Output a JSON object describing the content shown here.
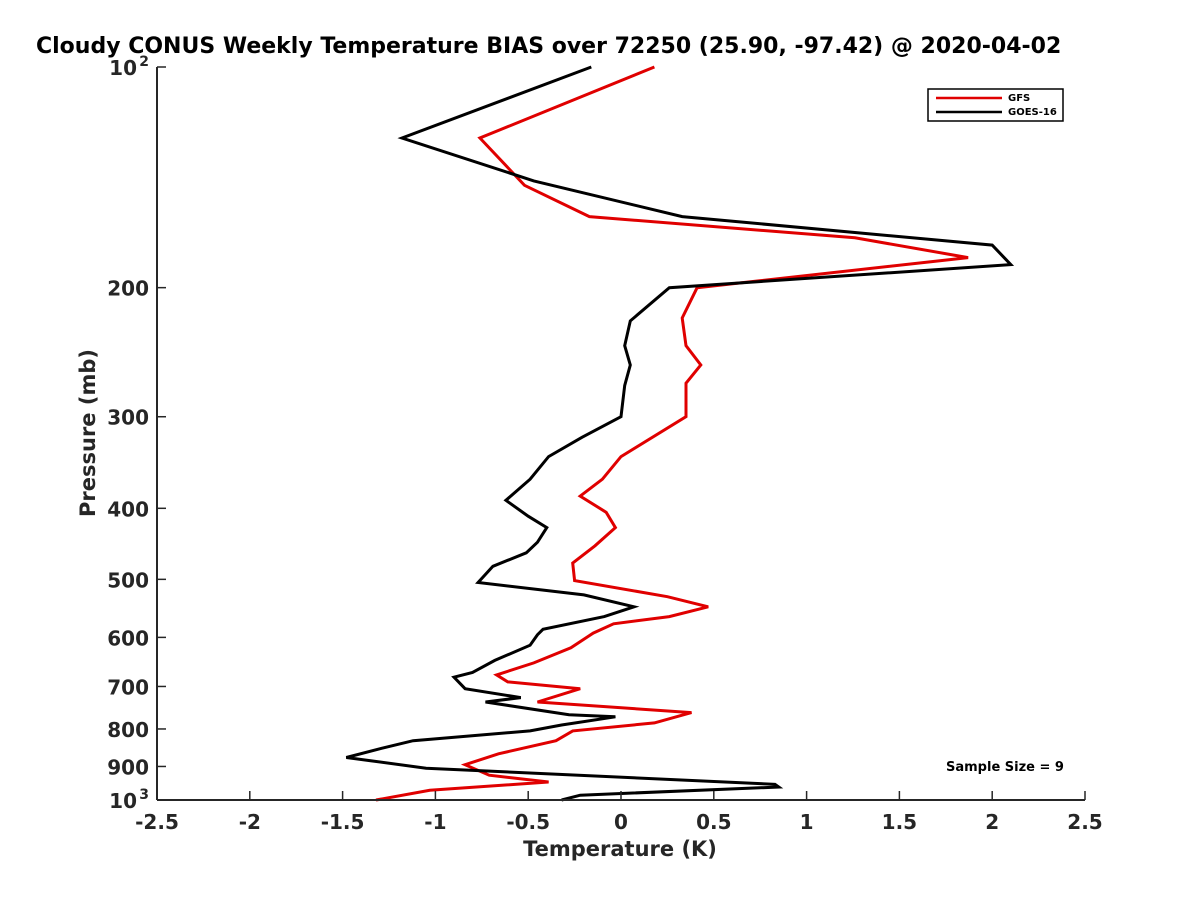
{
  "chart_data": {
    "type": "line",
    "title": "Cloudy CONUS Weekly Temperature BIAS over 72250 (25.90, -97.42) @ 2020-04-02",
    "xlabel": "Temperature (K)",
    "ylabel": "Pressure (mb)",
    "xlim": [
      -2.5,
      2.5
    ],
    "ylim": [
      100,
      1000
    ],
    "y_scale": "log",
    "y_reversed": true,
    "grid": false,
    "legend_position": "top-right",
    "annotation": "Sample Size = 9",
    "x_ticks": [
      {
        "value": -2.5,
        "label": "-2.5"
      },
      {
        "value": -2,
        "label": "-2"
      },
      {
        "value": -1.5,
        "label": "-1.5"
      },
      {
        "value": -1,
        "label": "-1"
      },
      {
        "value": -0.5,
        "label": "-0.5"
      },
      {
        "value": 0,
        "label": "0"
      },
      {
        "value": 0.5,
        "label": "0.5"
      },
      {
        "value": 1,
        "label": "1"
      },
      {
        "value": 1.5,
        "label": "1.5"
      },
      {
        "value": 2,
        "label": "2"
      },
      {
        "value": 2.5,
        "label": "2.5"
      }
    ],
    "y_ticks": [
      {
        "value": 100,
        "label": "10",
        "sup": "2"
      },
      {
        "value": 200,
        "label": "200"
      },
      {
        "value": 300,
        "label": "300"
      },
      {
        "value": 400,
        "label": "400"
      },
      {
        "value": 500,
        "label": "500"
      },
      {
        "value": 600,
        "label": "600"
      },
      {
        "value": 700,
        "label": "700"
      },
      {
        "value": 800,
        "label": "800"
      },
      {
        "value": 900,
        "label": "900"
      },
      {
        "value": 1000,
        "label": "10",
        "sup": "3"
      }
    ],
    "series": [
      {
        "name": "GFS",
        "color": "#e00000",
        "x": [
          0.18,
          -0.76,
          -0.52,
          -0.17,
          1.26,
          1.87,
          0.41,
          0.33,
          0.35,
          0.43,
          0.35,
          0.35,
          0.0,
          -0.1,
          -0.22,
          -0.08,
          -0.03,
          -0.14,
          -0.26,
          -0.25,
          0.25,
          0.47,
          0.26,
          -0.04,
          -0.15,
          -0.27,
          -0.47,
          -0.67,
          -0.61,
          -0.22,
          -0.45,
          0.38,
          0.18,
          -0.26,
          -0.35,
          -0.66,
          -0.84,
          -0.71,
          -0.39,
          -1.03,
          -1.32
        ],
        "y": [
          100,
          125,
          145,
          160,
          171,
          182,
          200,
          220,
          240,
          255,
          270,
          300,
          340,
          365,
          385,
          405,
          425,
          450,
          475,
          502,
          528,
          545,
          562,
          575,
          592,
          620,
          650,
          675,
          690,
          705,
          735,
          760,
          785,
          805,
          830,
          865,
          895,
          925,
          945,
          970,
          1000
        ]
      },
      {
        "name": "GOES-16",
        "color": "#000000",
        "x": [
          -0.16,
          -1.18,
          -0.47,
          0.33,
          2.0,
          2.1,
          0.26,
          0.05,
          0.02,
          0.05,
          0.02,
          0.0,
          -0.21,
          -0.39,
          -0.49,
          -0.62,
          -0.5,
          -0.4,
          -0.45,
          -0.51,
          -0.69,
          -0.77,
          -0.2,
          0.07,
          -0.09,
          -0.42,
          -0.45,
          -0.49,
          -0.68,
          -0.8,
          -0.9,
          -0.84,
          -0.54,
          -0.73,
          -0.28,
          -0.03,
          -0.32,
          -0.49,
          -1.12,
          -1.29,
          -1.48,
          -1.05,
          0.83,
          0.85,
          -0.22,
          -0.32
        ],
        "y": [
          100,
          125,
          143,
          160,
          175,
          186,
          200,
          222,
          240,
          255,
          272,
          300,
          320,
          340,
          365,
          390,
          410,
          425,
          445,
          460,
          480,
          505,
          525,
          545,
          562,
          585,
          595,
          615,
          645,
          670,
          680,
          705,
          725,
          735,
          765,
          770,
          790,
          805,
          830,
          850,
          875,
          905,
          952,
          960,
          985,
          1000
        ]
      }
    ]
  }
}
